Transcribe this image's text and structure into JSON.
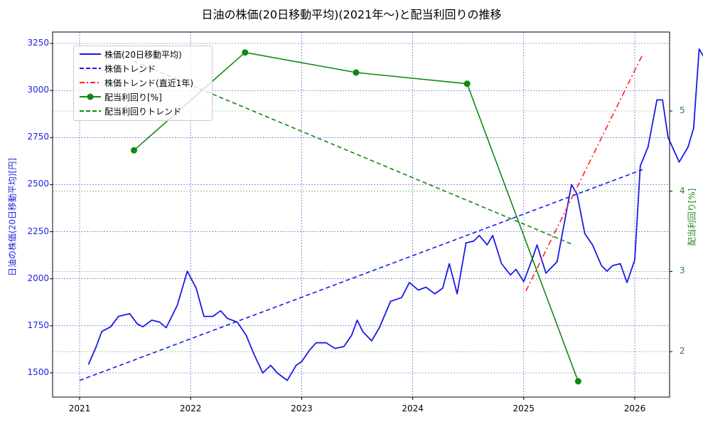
{
  "chart_data": {
    "type": "line",
    "title": "日油の株価(20日移動平均)(2021年〜)と配当利回りの推移",
    "xlabel": "",
    "ylabel_left": "日油の株価(20日移動平均)[円]",
    "ylabel_right": "配当利回り[%]",
    "x_ticks": [
      "2021",
      "2022",
      "2023",
      "2024",
      "2025",
      "2026"
    ],
    "y_left_ticks": [
      "1500",
      "1750",
      "2000",
      "2250",
      "2500",
      "2750",
      "3000",
      "3250"
    ],
    "y_right_ticks": [
      "2",
      "3",
      "4",
      "5"
    ],
    "ylim_left": [
      1370,
      3310
    ],
    "ylim_right": [
      1.45,
      5.85
    ],
    "grid": true,
    "legend_position": "upper left",
    "legend": [
      "株価(20日移動平均)",
      "株価トレンド",
      "株価トレンド(直近1年)",
      "配当利回り[%]",
      "配当利回りトレンド"
    ],
    "series": [
      {
        "name": "株価(20日移動平均)",
        "axis": "left",
        "color": "#1a1ae6",
        "style": "solid",
        "points": [
          [
            2021.08,
            1545
          ],
          [
            2021.15,
            1640
          ],
          [
            2021.2,
            1720
          ],
          [
            2021.28,
            1745
          ],
          [
            2021.35,
            1800
          ],
          [
            2021.45,
            1815
          ],
          [
            2021.52,
            1760
          ],
          [
            2021.57,
            1745
          ],
          [
            2021.65,
            1780
          ],
          [
            2021.72,
            1770
          ],
          [
            2021.78,
            1740
          ],
          [
            2021.88,
            1860
          ],
          [
            2021.97,
            2040
          ],
          [
            2022.05,
            1950
          ],
          [
            2022.12,
            1800
          ],
          [
            2022.2,
            1800
          ],
          [
            2022.27,
            1830
          ],
          [
            2022.33,
            1790
          ],
          [
            2022.42,
            1770
          ],
          [
            2022.5,
            1700
          ],
          [
            2022.57,
            1600
          ],
          [
            2022.65,
            1500
          ],
          [
            2022.72,
            1540
          ],
          [
            2022.78,
            1500
          ],
          [
            2022.87,
            1460
          ],
          [
            2022.95,
            1540
          ],
          [
            2023.0,
            1560
          ],
          [
            2023.07,
            1620
          ],
          [
            2023.13,
            1660
          ],
          [
            2023.22,
            1660
          ],
          [
            2023.3,
            1630
          ],
          [
            2023.38,
            1640
          ],
          [
            2023.45,
            1700
          ],
          [
            2023.5,
            1780
          ],
          [
            2023.55,
            1720
          ],
          [
            2023.63,
            1670
          ],
          [
            2023.7,
            1740
          ],
          [
            2023.8,
            1880
          ],
          [
            2023.9,
            1900
          ],
          [
            2023.97,
            1980
          ],
          [
            2024.05,
            1940
          ],
          [
            2024.12,
            1955
          ],
          [
            2024.2,
            1920
          ],
          [
            2024.27,
            1950
          ],
          [
            2024.33,
            2080
          ],
          [
            2024.4,
            1920
          ],
          [
            2024.48,
            2190
          ],
          [
            2024.55,
            2200
          ],
          [
            2024.6,
            2230
          ],
          [
            2024.67,
            2180
          ],
          [
            2024.72,
            2230
          ],
          [
            2024.8,
            2080
          ],
          [
            2024.88,
            2020
          ],
          [
            2024.93,
            2050
          ],
          [
            2025.0,
            1985
          ],
          [
            2025.08,
            2110
          ],
          [
            2025.12,
            2180
          ],
          [
            2025.2,
            2030
          ],
          [
            2025.3,
            2090
          ],
          [
            2025.43,
            2500
          ],
          [
            2025.48,
            2450
          ],
          [
            2025.55,
            2240
          ],
          [
            2025.62,
            2180
          ],
          [
            2025.7,
            2070
          ],
          [
            2025.75,
            2040
          ],
          [
            2025.8,
            2070
          ],
          [
            2025.87,
            2080
          ],
          [
            2025.93,
            1980
          ],
          [
            2026.0,
            2100
          ],
          [
            2026.05,
            2600
          ],
          [
            2026.12,
            2700
          ],
          [
            2026.2,
            2950
          ],
          [
            2026.25,
            2950
          ],
          [
            2026.3,
            2750
          ],
          [
            2026.4,
            2620
          ],
          [
            2026.48,
            2700
          ],
          [
            2026.53,
            2800
          ],
          [
            2026.58,
            3220
          ],
          [
            2026.62,
            3180
          ],
          [
            2026.68,
            3080
          ]
        ]
      },
      {
        "name": "株価トレンド",
        "axis": "left",
        "color": "#1a1ae6",
        "style": "dashed",
        "points": [
          [
            2021.0,
            1460
          ],
          [
            2026.07,
            2580
          ]
        ]
      },
      {
        "name": "株価トレンド(直近1年)",
        "axis": "left",
        "color": "#ff2020",
        "style": "dashdot",
        "points": [
          [
            2025.02,
            1935
          ],
          [
            2026.07,
            3190
          ]
        ]
      },
      {
        "name": "配当利回り[%]",
        "axis": "right",
        "color": "#118811",
        "style": "solid-marker",
        "points": [
          [
            2021.49,
            4.51
          ],
          [
            2022.49,
            5.73
          ],
          [
            2023.49,
            5.48
          ],
          [
            2024.49,
            5.34
          ],
          [
            2025.49,
            1.63
          ]
        ]
      },
      {
        "name": "配当利回りトレンド",
        "axis": "right",
        "color": "#118811",
        "style": "dashed",
        "points": [
          [
            2021.49,
            5.62
          ],
          [
            2025.45,
            3.33
          ]
        ]
      }
    ]
  }
}
